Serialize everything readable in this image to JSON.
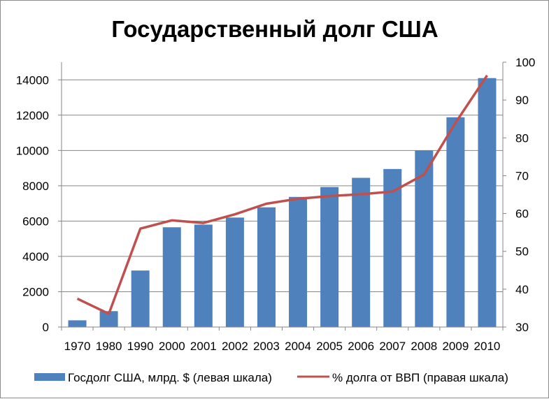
{
  "chart_data": {
    "type": "bar",
    "title": "Государственный долг США",
    "categories": [
      "1970",
      "1980",
      "1990",
      "2000",
      "2001",
      "2002",
      "2003",
      "2004",
      "2005",
      "2006",
      "2007",
      "2008",
      "2009",
      "2010"
    ],
    "series": [
      {
        "name": "Госдолг США, млрд. $ (левая шкала)",
        "type": "bar",
        "axis": "left",
        "color": "#4f81bd",
        "values": [
          380,
          900,
          3200,
          5650,
          5800,
          6200,
          6780,
          7370,
          7930,
          8450,
          8950,
          10000,
          11880,
          14100
        ]
      },
      {
        "name": "% долга от ВВП (правая шкала)",
        "type": "line",
        "axis": "right",
        "color": "#c0504d",
        "values": [
          37.5,
          33.5,
          56.0,
          58.2,
          57.5,
          59.8,
          62.6,
          63.9,
          64.6,
          65.1,
          65.8,
          70.3,
          84.0,
          96.5
        ]
      }
    ],
    "y_left": {
      "min": 0,
      "max": 15000,
      "ticks": [
        0,
        2000,
        4000,
        6000,
        8000,
        10000,
        12000,
        14000
      ]
    },
    "y_right": {
      "min": 30,
      "max": 100,
      "ticks": [
        30,
        40,
        50,
        60,
        70,
        80,
        90,
        100
      ]
    },
    "grid": true,
    "legend_position": "bottom"
  }
}
